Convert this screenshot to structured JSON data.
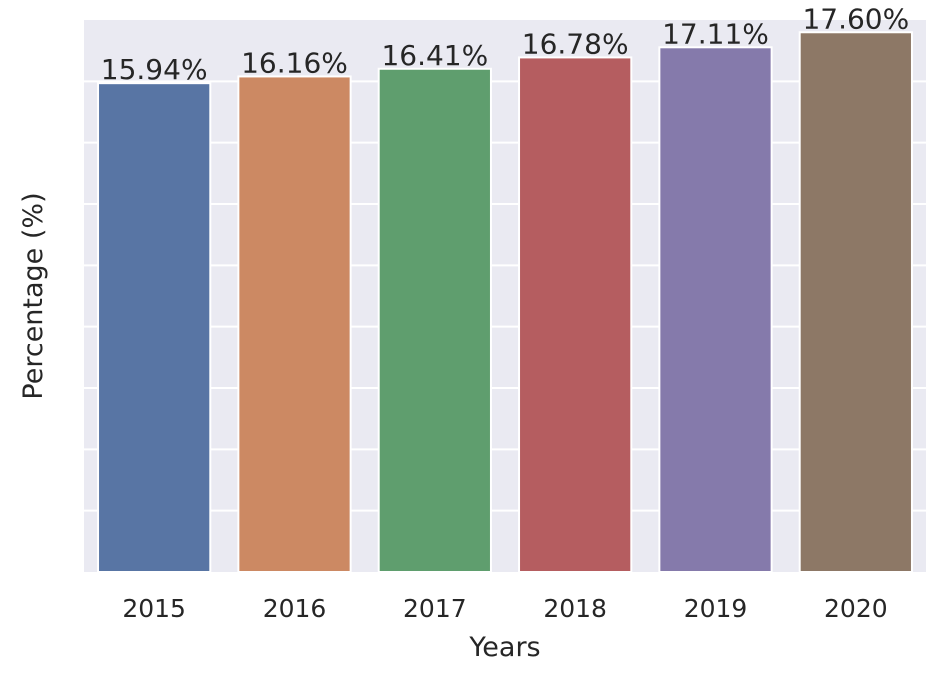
{
  "chart_data": {
    "type": "bar",
    "title": "",
    "xlabel": "Years",
    "ylabel": "Percentage (%)",
    "categories": [
      "2015",
      "2016",
      "2017",
      "2018",
      "2019",
      "2020"
    ],
    "values": [
      15.94,
      16.16,
      16.41,
      16.78,
      17.11,
      17.6
    ],
    "value_labels": [
      "15.94%",
      "16.16%",
      "16.41%",
      "16.78%",
      "17.11%",
      "17.60%"
    ],
    "ylim": [
      0,
      18
    ],
    "y_gridlines": [
      2,
      4,
      6,
      8,
      10,
      12,
      14,
      16
    ],
    "y_tick_labels_shown": false,
    "grid": true,
    "legend": "none",
    "colors": [
      "#5875a4",
      "#cc8963",
      "#5f9e6e",
      "#b55d60",
      "#857aab",
      "#8d7866"
    ],
    "background_color": "#eaeaf2",
    "gridline_color": "#ffffff"
  }
}
